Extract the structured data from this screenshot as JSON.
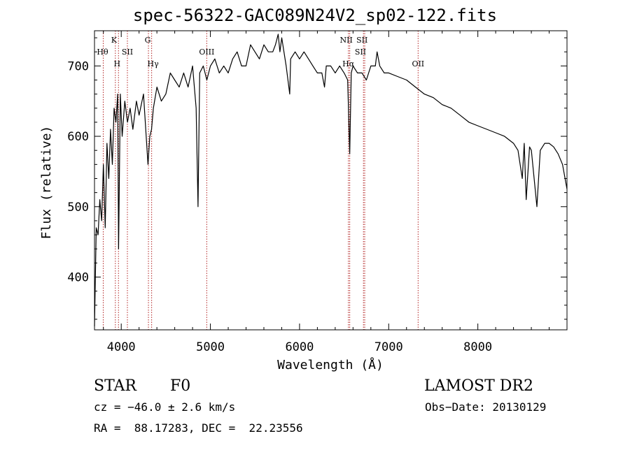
{
  "chart_data": {
    "type": "line",
    "title": "spec-56322-GAC089N24V2_sp02-122.fits",
    "xlabel": "Wavelength (Å)",
    "ylabel": "Flux (relative)",
    "xlim": [
      3700,
      9000
    ],
    "ylim": [
      325,
      750
    ],
    "xticks": [
      4000,
      5000,
      6000,
      7000,
      8000
    ],
    "yticks": [
      400,
      500,
      600,
      700
    ],
    "grid": false,
    "series": [
      {
        "x": [
          3700,
          3720,
          3740,
          3760,
          3780,
          3800,
          3820,
          3840,
          3860,
          3880,
          3900,
          3920,
          3940,
          3960,
          3970,
          3990,
          4010,
          4040,
          4070,
          4100,
          4130,
          4170,
          4200,
          4250,
          4300,
          4320,
          4340,
          4360,
          4400,
          4450,
          4500,
          4550,
          4600,
          4650,
          4700,
          4750,
          4800,
          4840,
          4861,
          4880,
          4920,
          4960,
          5000,
          5050,
          5100,
          5150,
          5200,
          5250,
          5300,
          5350,
          5400,
          5450,
          5500,
          5550,
          5600,
          5650,
          5700,
          5730,
          5760,
          5780,
          5800,
          5850,
          5890,
          5900,
          5950,
          6000,
          6050,
          6100,
          6150,
          6200,
          6250,
          6280,
          6300,
          6350,
          6400,
          6450,
          6500,
          6540,
          6563,
          6580,
          6600,
          6650,
          6700,
          6750,
          6800,
          6850,
          6870,
          6900,
          6950,
          7000,
          7100,
          7200,
          7300,
          7400,
          7500,
          7600,
          7700,
          7800,
          7900,
          8000,
          8100,
          8200,
          8300,
          8400,
          8450,
          8498,
          8520,
          8542,
          8580,
          8600,
          8662,
          8700,
          8750,
          8800,
          8850,
          8900,
          8950,
          9000
        ],
        "y": [
          330,
          470,
          460,
          510,
          480,
          560,
          470,
          590,
          540,
          610,
          560,
          640,
          620,
          660,
          440,
          660,
          600,
          650,
          620,
          640,
          610,
          650,
          630,
          660,
          560,
          600,
          610,
          640,
          670,
          650,
          660,
          690,
          680,
          670,
          690,
          670,
          700,
          640,
          500,
          690,
          700,
          680,
          700,
          710,
          690,
          700,
          690,
          710,
          720,
          700,
          700,
          730,
          720,
          710,
          730,
          720,
          720,
          730,
          745,
          720,
          740,
          700,
          660,
          710,
          720,
          710,
          720,
          710,
          700,
          690,
          690,
          670,
          700,
          700,
          690,
          700,
          690,
          680,
          575,
          690,
          700,
          690,
          690,
          680,
          700,
          700,
          720,
          700,
          690,
          690,
          685,
          680,
          670,
          660,
          655,
          645,
          640,
          630,
          620,
          615,
          610,
          605,
          600,
          590,
          580,
          540,
          590,
          510,
          585,
          580,
          500,
          580,
          590,
          590,
          585,
          575,
          560,
          525
        ]
      }
    ],
    "lines": [
      {
        "label": "Hθ",
        "x": 3798
      },
      {
        "label": "K",
        "x": 3934
      },
      {
        "label": "H",
        "x": 3969
      },
      {
        "label": "SII",
        "x": 4069
      },
      {
        "label": "G",
        "x": 4305
      },
      {
        "label": "Hγ",
        "x": 4341
      },
      {
        "label": "OIII",
        "x": 4959
      },
      {
        "label": "NII",
        "x": 6548
      },
      {
        "label": "Hα",
        "x": 6563
      },
      {
        "label": "SII",
        "x": 6717
      },
      {
        "label": "SII",
        "x": 6731
      },
      {
        "label": "OII",
        "x": 7330
      }
    ]
  },
  "info": {
    "object_class": "STAR",
    "subclass": "F0",
    "survey": "LAMOST DR2",
    "redshift_line": "cz = −46.0 ± 2.6 km/s",
    "obs_date": "Obs−Date: 20130129",
    "coords": "RA =  88.17283, DEC =  22.23556"
  },
  "colors": {
    "spectrum": "#000000",
    "line_marker": "#b22222",
    "axes": "#000000"
  }
}
